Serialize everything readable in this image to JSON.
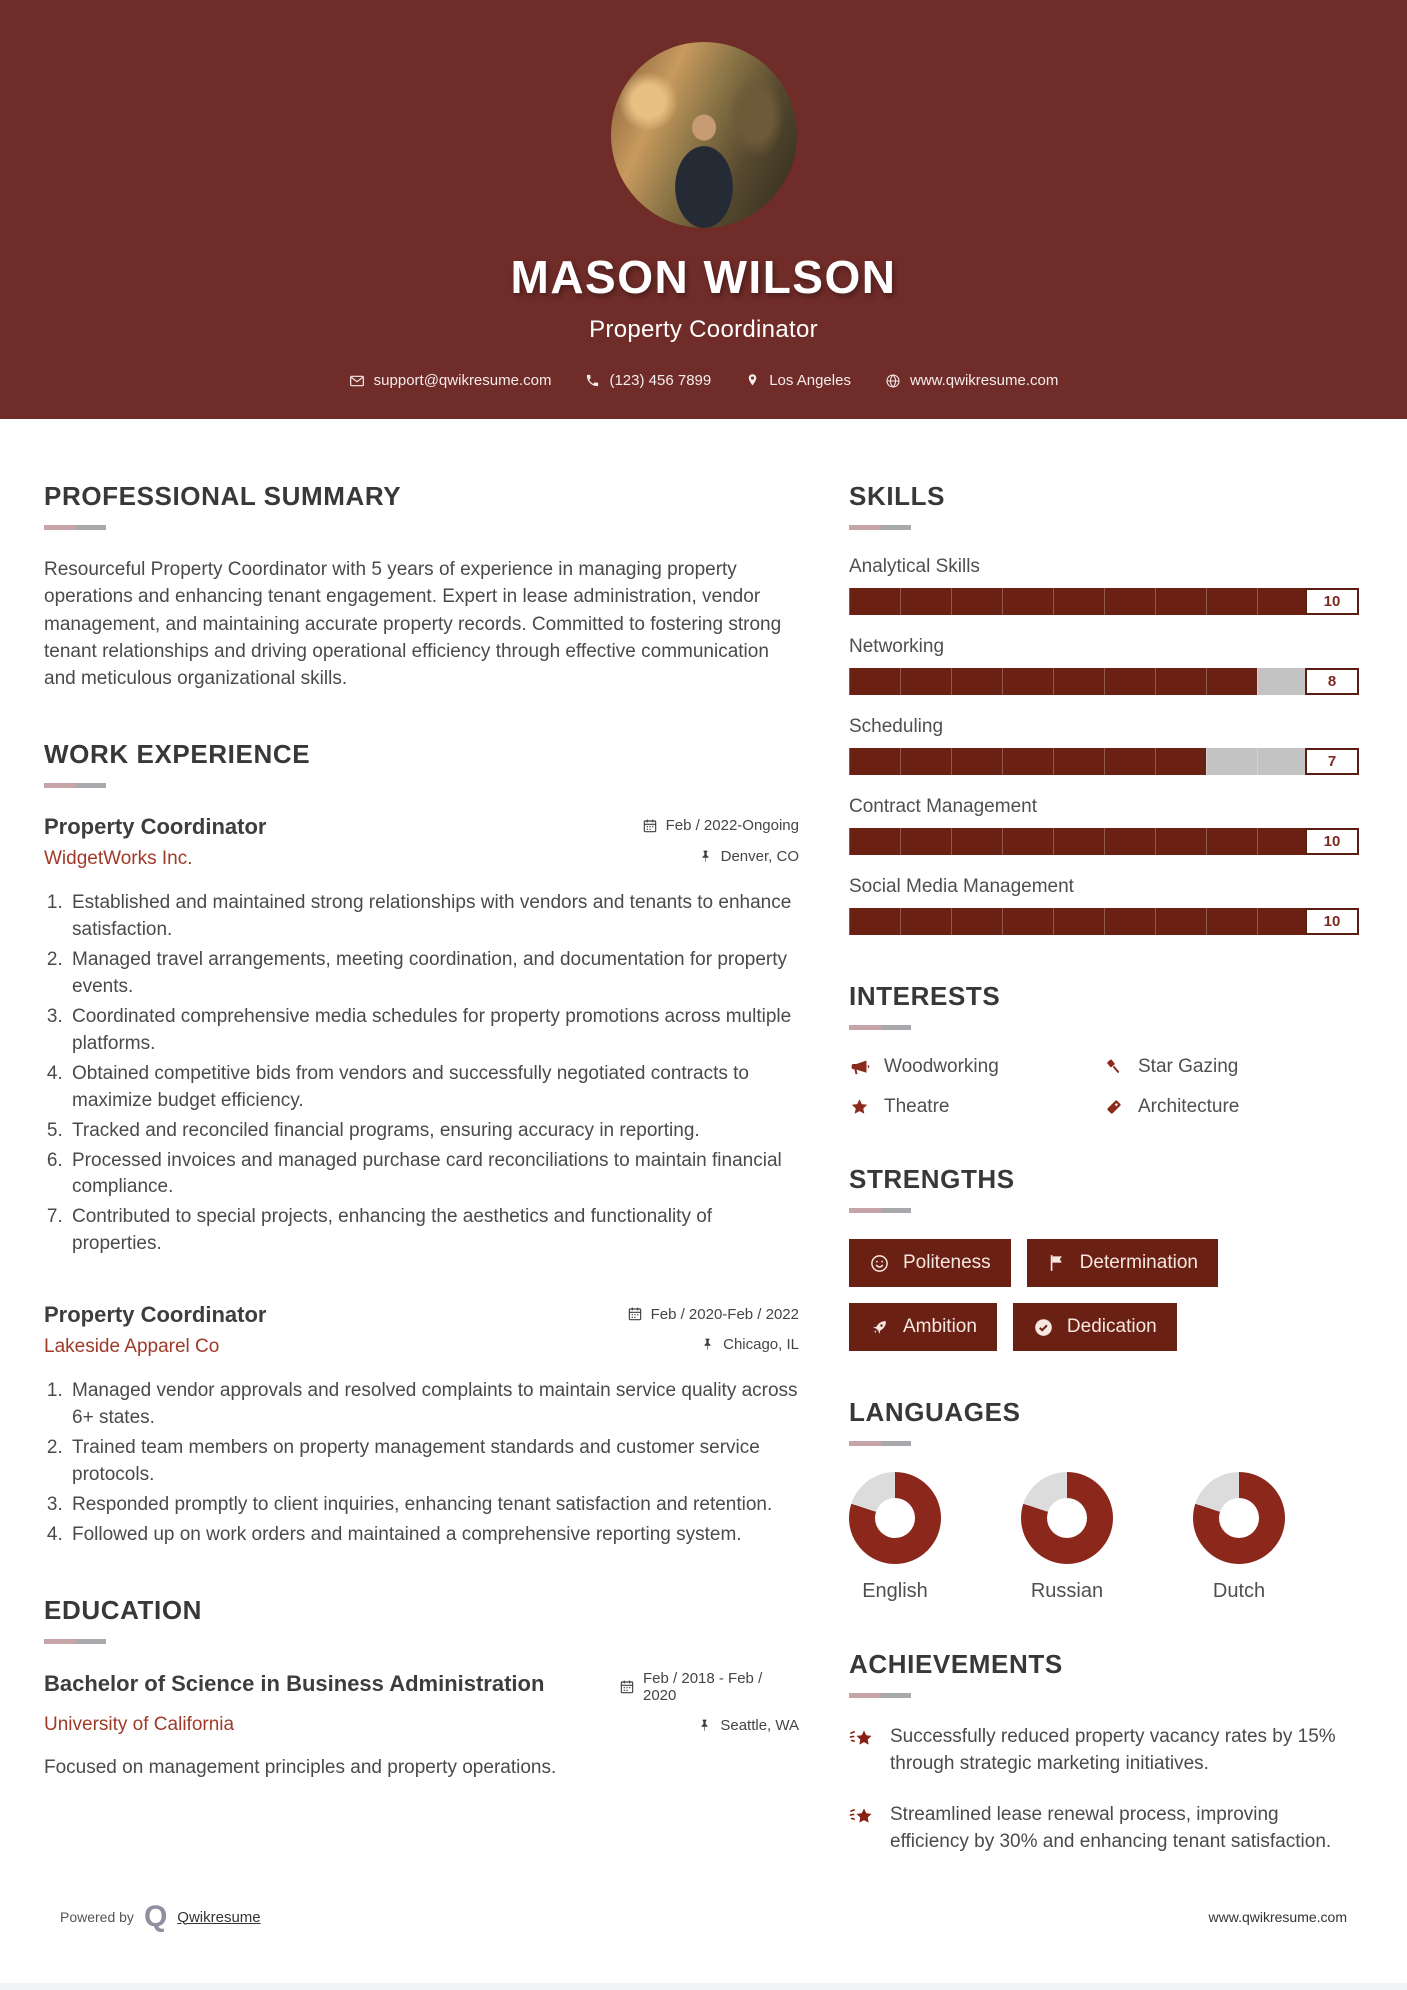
{
  "header": {
    "name": "MASON WILSON",
    "title": "Property Coordinator",
    "contacts": [
      {
        "icon": "envelope-icon",
        "text": "support@qwikresume.com"
      },
      {
        "icon": "phone-icon",
        "text": "(123) 456 7899"
      },
      {
        "icon": "map-pin-icon",
        "text": "Los Angeles"
      },
      {
        "icon": "globe-icon",
        "text": "www.qwikresume.com"
      }
    ]
  },
  "summary": {
    "heading": "PROFESSIONAL SUMMARY",
    "text": "Resourceful Property Coordinator with 5 years of experience in managing property operations and enhancing tenant engagement. Expert in lease administration, vendor management, and maintaining accurate property records. Committed to fostering strong tenant relationships and driving operational efficiency through effective communication and meticulous organizational skills."
  },
  "work": {
    "heading": "WORK EXPERIENCE",
    "jobs": [
      {
        "title": "Property Coordinator",
        "company": "WidgetWorks Inc.",
        "date": "Feb / 2022-Ongoing",
        "location": "Denver, CO",
        "bullets": [
          "Established and maintained strong relationships with vendors and tenants to enhance satisfaction.",
          "Managed travel arrangements, meeting coordination, and documentation for property events.",
          "Coordinated comprehensive media schedules for property promotions across multiple platforms.",
          "Obtained competitive bids from vendors and successfully negotiated contracts to maximize budget efficiency.",
          "Tracked and reconciled financial programs, ensuring accuracy in reporting.",
          "Processed invoices and managed purchase card reconciliations to maintain financial compliance.",
          "Contributed to special projects, enhancing the aesthetics and functionality of properties."
        ]
      },
      {
        "title": "Property Coordinator",
        "company": "Lakeside Apparel Co",
        "date": "Feb / 2020-Feb / 2022",
        "location": "Chicago, IL",
        "bullets": [
          "Managed vendor approvals and resolved complaints to maintain service quality across 6+ states.",
          "Trained team members on property management standards and customer service protocols.",
          "Responded promptly to client inquiries, enhancing tenant satisfaction and retention.",
          "Followed up on work orders and maintained a comprehensive reporting system."
        ]
      }
    ]
  },
  "education": {
    "heading": "EDUCATION",
    "degree": "Bachelor of Science in Business Administration",
    "school": "University of California",
    "dates": "Feb / 2018 - Feb / 2020",
    "location": "Seattle, WA",
    "note": "Focused on management principles and property operations."
  },
  "skills": {
    "heading": "SKILLS",
    "max": 10,
    "items": [
      {
        "label": "Analytical Skills",
        "value": 10
      },
      {
        "label": "Networking",
        "value": 8
      },
      {
        "label": "Scheduling",
        "value": 7
      },
      {
        "label": "Contract Management",
        "value": 10
      },
      {
        "label": "Social Media Management",
        "value": 10
      }
    ]
  },
  "interests": {
    "heading": "INTERESTS",
    "items": [
      {
        "icon": "megaphone-icon",
        "label": "Woodworking"
      },
      {
        "icon": "gavel-icon",
        "label": "Star Gazing"
      },
      {
        "icon": "star-icon",
        "label": "Theatre"
      },
      {
        "icon": "tag-icon",
        "label": "Architecture"
      }
    ]
  },
  "strengths": {
    "heading": "STRENGTHS",
    "items": [
      {
        "icon": "smiley-icon",
        "label": "Politeness"
      },
      {
        "icon": "flag-icon",
        "label": "Determination"
      },
      {
        "icon": "rocket-icon",
        "label": "Ambition"
      },
      {
        "icon": "check-circle-icon",
        "label": "Dedication"
      }
    ]
  },
  "languages": {
    "heading": "LANGUAGES",
    "items": [
      {
        "label": "English",
        "percent": 80
      },
      {
        "label": "Russian",
        "percent": 80
      },
      {
        "label": "Dutch",
        "percent": 80
      }
    ]
  },
  "achievements": {
    "heading": "ACHIEVEMENTS",
    "items": [
      "Successfully reduced property vacancy rates by 15% through strategic marketing initiatives.",
      "Streamlined lease renewal process, improving efficiency by 30% and enhancing tenant satisfaction."
    ]
  },
  "footer": {
    "powered_by": "Powered by",
    "logo_letter": "Q",
    "brand": "Qwikresume",
    "site": "www.qwikresume.com"
  },
  "colors": {
    "header_bg": "#702c29",
    "accent": "#6b2014",
    "donut_fill": "#8c271b",
    "donut_track": "#dcdcdc",
    "bar_track": "#c3c3c3",
    "company": "#a03a28"
  }
}
